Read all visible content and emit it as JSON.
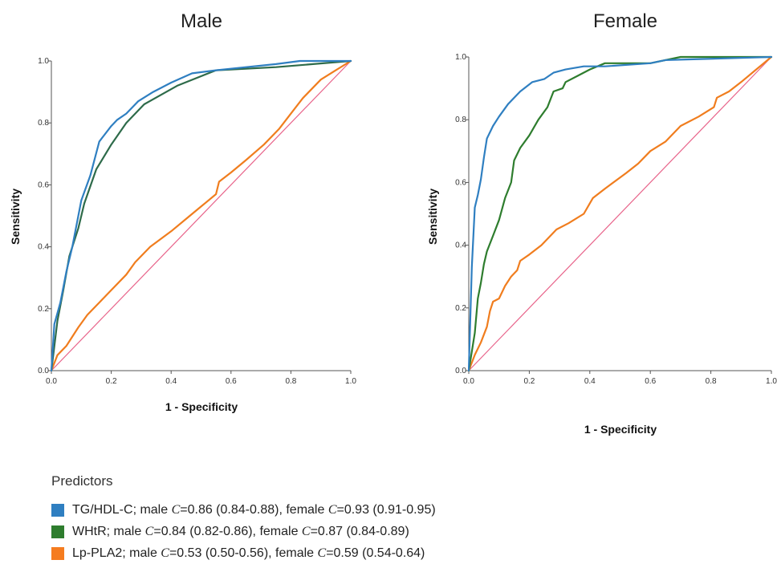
{
  "chart_data": [
    {
      "type": "line",
      "title": "Male",
      "xlabel": "1 - Specificity",
      "ylabel": "Sensitivity",
      "xlim": [
        0,
        1
      ],
      "ylim": [
        0,
        1
      ],
      "xticks": [
        "0.0",
        "0.2",
        "0.4",
        "0.6",
        "0.8",
        "1.0"
      ],
      "yticks": [
        "0.0",
        "0.2",
        "0.4",
        "0.6",
        "0.8",
        "1.0"
      ],
      "reference_line": [
        [
          0,
          0
        ],
        [
          1,
          1
        ]
      ],
      "series": [
        {
          "name": "TG/HDL-C",
          "color": "#2f7fc1",
          "points": [
            [
              0,
              0
            ],
            [
              0.01,
              0.15
            ],
            [
              0.03,
              0.22
            ],
            [
              0.05,
              0.32
            ],
            [
              0.07,
              0.4
            ],
            [
              0.1,
              0.55
            ],
            [
              0.13,
              0.63
            ],
            [
              0.16,
              0.74
            ],
            [
              0.2,
              0.79
            ],
            [
              0.22,
              0.81
            ],
            [
              0.25,
              0.83
            ],
            [
              0.29,
              0.87
            ],
            [
              0.34,
              0.9
            ],
            [
              0.4,
              0.93
            ],
            [
              0.47,
              0.96
            ],
            [
              0.55,
              0.97
            ],
            [
              0.65,
              0.98
            ],
            [
              0.75,
              0.99
            ],
            [
              0.83,
              1.0
            ],
            [
              1,
              1
            ]
          ]
        },
        {
          "name": "WHtR",
          "color": "#2e6b4a",
          "points": [
            [
              0,
              0
            ],
            [
              0.02,
              0.16
            ],
            [
              0.04,
              0.26
            ],
            [
              0.06,
              0.37
            ],
            [
              0.09,
              0.46
            ],
            [
              0.11,
              0.54
            ],
            [
              0.15,
              0.65
            ],
            [
              0.2,
              0.73
            ],
            [
              0.25,
              0.8
            ],
            [
              0.31,
              0.86
            ],
            [
              0.42,
              0.92
            ],
            [
              0.55,
              0.97
            ],
            [
              0.75,
              0.98
            ],
            [
              1,
              1
            ]
          ]
        },
        {
          "name": "Lp-PLA2",
          "color": "#f07d1e",
          "points": [
            [
              0,
              0
            ],
            [
              0.02,
              0.05
            ],
            [
              0.05,
              0.08
            ],
            [
              0.09,
              0.14
            ],
            [
              0.12,
              0.18
            ],
            [
              0.16,
              0.22
            ],
            [
              0.2,
              0.26
            ],
            [
              0.25,
              0.31
            ],
            [
              0.28,
              0.35
            ],
            [
              0.33,
              0.4
            ],
            [
              0.4,
              0.45
            ],
            [
              0.45,
              0.49
            ],
            [
              0.5,
              0.53
            ],
            [
              0.55,
              0.57
            ],
            [
              0.56,
              0.61
            ],
            [
              0.6,
              0.64
            ],
            [
              0.65,
              0.68
            ],
            [
              0.71,
              0.73
            ],
            [
              0.76,
              0.78
            ],
            [
              0.8,
              0.83
            ],
            [
              0.84,
              0.88
            ],
            [
              0.9,
              0.94
            ],
            [
              0.95,
              0.97
            ],
            [
              1,
              1
            ]
          ]
        }
      ]
    },
    {
      "type": "line",
      "title": "Female",
      "xlabel": "1 - Specificity",
      "ylabel": "Sensitivity",
      "xlim": [
        0,
        1
      ],
      "ylim": [
        0,
        1
      ],
      "xticks": [
        "0.0",
        "0.2",
        "0.4",
        "0.6",
        "0.8",
        "1.0"
      ],
      "yticks": [
        "0.0",
        "0.2",
        "0.4",
        "0.6",
        "0.8",
        "1.0"
      ],
      "reference_line": [
        [
          0,
          0
        ],
        [
          1,
          1
        ]
      ],
      "series": [
        {
          "name": "TG/HDL-C",
          "color": "#2f7fc1",
          "points": [
            [
              0,
              0
            ],
            [
              0.01,
              0.33
            ],
            [
              0.02,
              0.52
            ],
            [
              0.03,
              0.56
            ],
            [
              0.04,
              0.61
            ],
            [
              0.05,
              0.68
            ],
            [
              0.06,
              0.74
            ],
            [
              0.08,
              0.78
            ],
            [
              0.1,
              0.81
            ],
            [
              0.13,
              0.85
            ],
            [
              0.17,
              0.89
            ],
            [
              0.21,
              0.92
            ],
            [
              0.25,
              0.93
            ],
            [
              0.28,
              0.95
            ],
            [
              0.32,
              0.96
            ],
            [
              0.38,
              0.97
            ],
            [
              0.45,
              0.97
            ],
            [
              0.6,
              0.98
            ],
            [
              0.65,
              0.99
            ],
            [
              1,
              1
            ]
          ]
        },
        {
          "name": "WHtR",
          "color": "#2e7d2e",
          "points": [
            [
              0,
              0
            ],
            [
              0.02,
              0.12
            ],
            [
              0.03,
              0.23
            ],
            [
              0.04,
              0.28
            ],
            [
              0.05,
              0.34
            ],
            [
              0.06,
              0.38
            ],
            [
              0.08,
              0.43
            ],
            [
              0.1,
              0.48
            ],
            [
              0.12,
              0.55
            ],
            [
              0.14,
              0.6
            ],
            [
              0.15,
              0.67
            ],
            [
              0.17,
              0.71
            ],
            [
              0.2,
              0.75
            ],
            [
              0.23,
              0.8
            ],
            [
              0.26,
              0.84
            ],
            [
              0.28,
              0.89
            ],
            [
              0.31,
              0.9
            ],
            [
              0.32,
              0.92
            ],
            [
              0.36,
              0.94
            ],
            [
              0.4,
              0.96
            ],
            [
              0.45,
              0.98
            ],
            [
              0.6,
              0.98
            ],
            [
              0.7,
              1.0
            ],
            [
              1,
              1
            ]
          ]
        },
        {
          "name": "Lp-PLA2",
          "color": "#f07d1e",
          "points": [
            [
              0,
              0
            ],
            [
              0.02,
              0.05
            ],
            [
              0.04,
              0.09
            ],
            [
              0.06,
              0.14
            ],
            [
              0.07,
              0.19
            ],
            [
              0.08,
              0.22
            ],
            [
              0.1,
              0.23
            ],
            [
              0.12,
              0.27
            ],
            [
              0.14,
              0.3
            ],
            [
              0.16,
              0.32
            ],
            [
              0.17,
              0.35
            ],
            [
              0.2,
              0.37
            ],
            [
              0.24,
              0.4
            ],
            [
              0.29,
              0.45
            ],
            [
              0.33,
              0.47
            ],
            [
              0.38,
              0.5
            ],
            [
              0.41,
              0.55
            ],
            [
              0.45,
              0.58
            ],
            [
              0.52,
              0.63
            ],
            [
              0.56,
              0.66
            ],
            [
              0.6,
              0.7
            ],
            [
              0.65,
              0.73
            ],
            [
              0.7,
              0.78
            ],
            [
              0.76,
              0.81
            ],
            [
              0.81,
              0.84
            ],
            [
              0.82,
              0.87
            ],
            [
              0.86,
              0.89
            ],
            [
              0.9,
              0.92
            ],
            [
              0.95,
              0.96
            ],
            [
              1,
              1
            ]
          ]
        }
      ]
    }
  ],
  "legend": {
    "title": "Predictors",
    "items": [
      {
        "color": "#2f7fc1",
        "name": "TG/HDL-C",
        "male_c": "0.86 (0.84-0.88)",
        "female_c": "0.93 (0.91-0.95)"
      },
      {
        "color": "#2e7d2e",
        "name": "WHtR",
        "male_c": "0.84 (0.82-0.86)",
        "female_c": "0.87 (0.84-0.89)"
      },
      {
        "color": "#f57c1f",
        "name": "Lp-PLA2",
        "male_c": "0.53 (0.50-0.56)",
        "female_c": "0.59 (0.54-0.64)"
      }
    ]
  }
}
